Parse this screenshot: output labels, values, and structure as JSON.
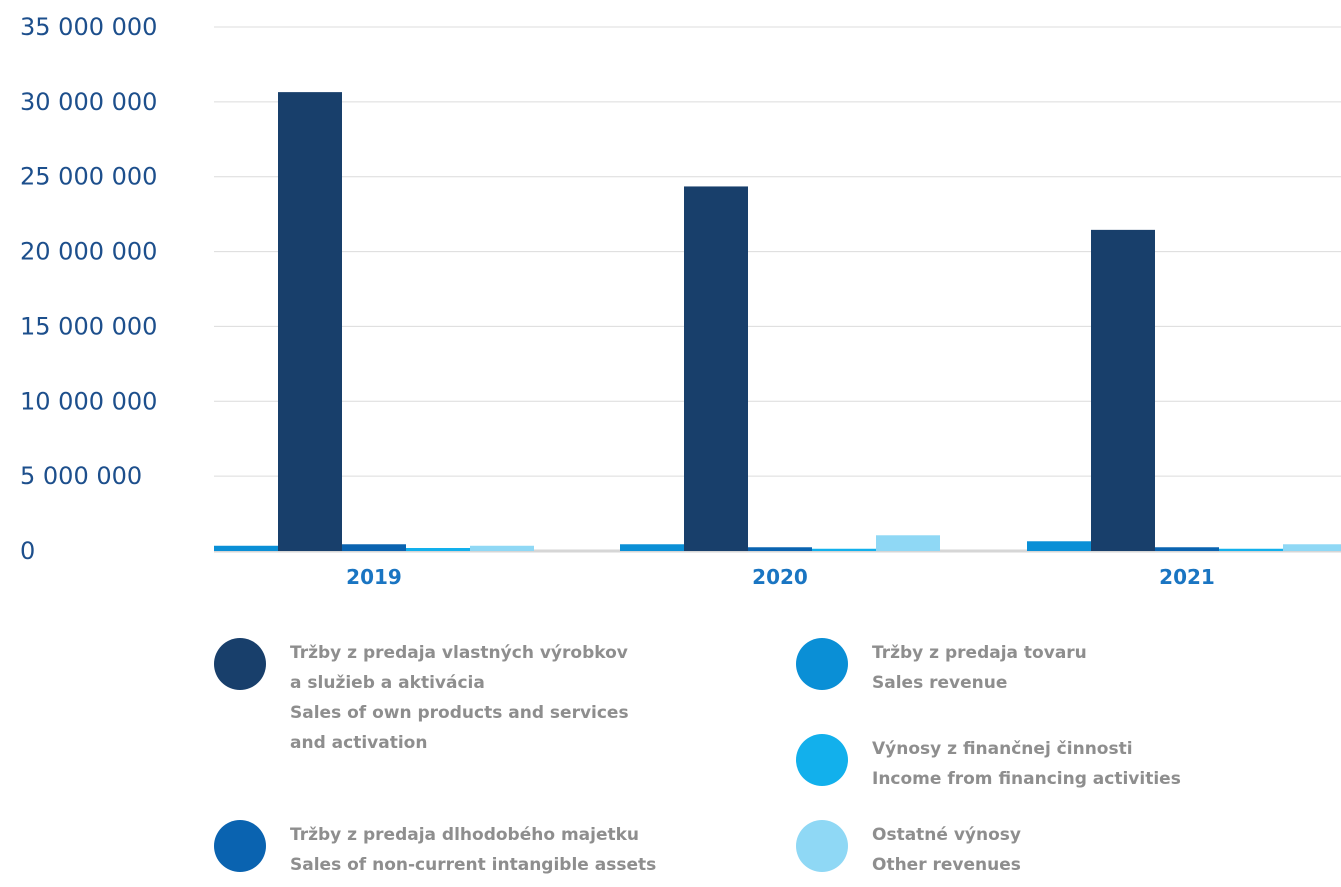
{
  "chart_data": {
    "type": "bar",
    "categories": [
      "2019",
      "2020",
      "2021"
    ],
    "ylim": [
      0,
      35000000
    ],
    "yticks": [
      0,
      5000000,
      10000000,
      15000000,
      20000000,
      25000000,
      30000000,
      35000000
    ],
    "ytick_labels": [
      "0",
      "5 000 000",
      "10 000 000",
      "15 000 000",
      "20 000 000",
      "25 000 000",
      "30 000 000",
      "35 000 000"
    ],
    "grid": true,
    "legend_position": "bottom",
    "series": [
      {
        "name": "Tržby z predaja tovaru / Sales revenue",
        "color": "#0a8fd6",
        "values": [
          350000,
          450000,
          650000
        ]
      },
      {
        "name": "Tržby z predaja vlastných výrobkov a služieb a aktivácia / Sales of own products and services and activation",
        "color": "#183f6b",
        "values": [
          30650000,
          24350000,
          21450000
        ]
      },
      {
        "name": "Tržby z predaja dlhodobého majetku / Sales of non-current intangible assets",
        "color": "#0a63b0",
        "values": [
          450000,
          250000,
          250000
        ]
      },
      {
        "name": "Výnosy z finančnej činnosti / Income from financing activities",
        "color": "#12b0ec",
        "values": [
          200000,
          150000,
          150000
        ]
      },
      {
        "name": "Ostatné výnosy / Other revenues",
        "color": "#8fd8f5",
        "values": [
          350000,
          1050000,
          450000
        ]
      }
    ]
  },
  "legend": [
    {
      "color": "#183f6b",
      "lines": [
        "Tržby z predaja vlastných výrobkov",
        "a služieb a aktivácia",
        "Sales of own products and services",
        "and activation"
      ]
    },
    {
      "color": "#0a8fd6",
      "lines": [
        "Tržby z predaja tovaru",
        "Sales revenue"
      ]
    },
    {
      "color": "#12b0ec",
      "lines": [
        "Výnosy z finančnej činnosti",
        "Income from financing activities"
      ]
    },
    {
      "color": "#0a63b0",
      "lines": [
        "Tržby z predaja dlhodobého majetku",
        "Sales of non-current intangible assets"
      ]
    },
    {
      "color": "#8fd8f5",
      "lines": [
        "Ostatné výnosy",
        "Other revenues"
      ]
    }
  ]
}
